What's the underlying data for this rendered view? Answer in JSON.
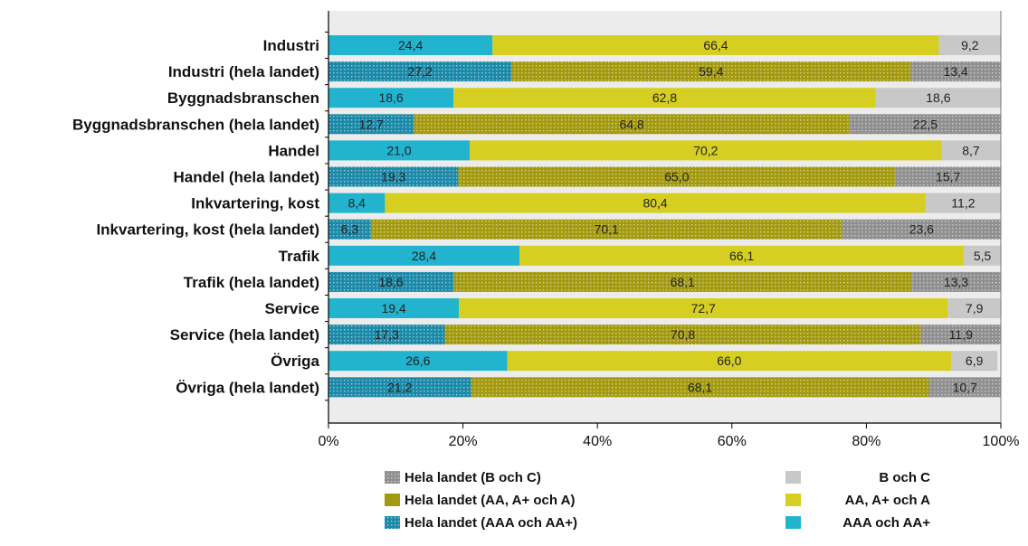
{
  "chart_data": {
    "type": "bar",
    "orientation": "horizontal",
    "stacked": true,
    "percent_scale": true,
    "categories": [
      "Industri",
      "Industri (hela landet)",
      "Byggnadsbranschen",
      "Byggnadsbranschen (hela landet)",
      "Handel",
      "Handel (hela landet)",
      "Inkvartering, kost",
      "Inkvartering, kost (hela landet)",
      "Trafik",
      "Trafik (hela landet)",
      "Service",
      "Service (hela landet)",
      "Övriga",
      "Övriga (hela landet)"
    ],
    "rows": [
      {
        "national": false,
        "values": [
          24.4,
          66.4,
          9.2
        ],
        "labels": [
          "24,4",
          "66,4",
          "9,2"
        ]
      },
      {
        "national": true,
        "values": [
          27.2,
          59.4,
          13.4
        ],
        "labels": [
          "27,2",
          "59,4",
          "13,4"
        ]
      },
      {
        "national": false,
        "values": [
          18.6,
          62.8,
          18.6
        ],
        "labels": [
          "18,6",
          "62,8",
          "18,6"
        ]
      },
      {
        "national": true,
        "values": [
          12.7,
          64.8,
          22.5
        ],
        "labels": [
          "12,7",
          "64,8",
          "22,5"
        ]
      },
      {
        "national": false,
        "values": [
          21.0,
          70.2,
          8.7
        ],
        "labels": [
          "21,0",
          "70,2",
          "8,7"
        ]
      },
      {
        "national": true,
        "values": [
          19.3,
          65.0,
          15.7
        ],
        "labels": [
          "19,3",
          "65,0",
          "15,7"
        ]
      },
      {
        "national": false,
        "values": [
          8.4,
          80.4,
          11.2
        ],
        "labels": [
          "8,4",
          "80,4",
          "11,2"
        ]
      },
      {
        "national": true,
        "values": [
          6.3,
          70.1,
          23.6
        ],
        "labels": [
          "6,3",
          "70,1",
          "23,6"
        ]
      },
      {
        "national": false,
        "values": [
          28.4,
          66.1,
          5.5
        ],
        "labels": [
          "28,4",
          "66,1",
          "5,5"
        ]
      },
      {
        "national": true,
        "values": [
          18.6,
          68.1,
          13.3
        ],
        "labels": [
          "18,6",
          "68,1",
          "13,3"
        ]
      },
      {
        "national": false,
        "values": [
          19.4,
          72.7,
          7.9
        ],
        "labels": [
          "19,4",
          "72,7",
          "7,9"
        ]
      },
      {
        "national": true,
        "values": [
          17.3,
          70.8,
          11.9
        ],
        "labels": [
          "17,3",
          "70,8",
          "11,9"
        ]
      },
      {
        "national": false,
        "values": [
          26.6,
          66.0,
          6.9
        ],
        "labels": [
          "26,6",
          "66,0",
          "6,9"
        ]
      },
      {
        "national": true,
        "values": [
          21.2,
          68.1,
          10.7
        ],
        "labels": [
          "21,2",
          "68,1",
          "10,7"
        ]
      }
    ],
    "segment_order": [
      "AAA och AA+",
      "AA, A+ och A",
      "B och C"
    ],
    "xlim": [
      0,
      100
    ],
    "xticks": [
      "0%",
      "20%",
      "40%",
      "60%",
      "80%",
      "100%"
    ],
    "grid": false,
    "legend_placement": "bottom",
    "legend": [
      {
        "label": "Hela landet (B och C)",
        "color": "#909090",
        "pattern": "dotted"
      },
      {
        "label": "B och C",
        "color": "#c8c8c8",
        "pattern": "solid"
      },
      {
        "label": "Hela landet (AA, A+ och A)",
        "color": "#a39a10",
        "pattern": "solid"
      },
      {
        "label": "AA, A+ och A",
        "color": "#d6cf22",
        "pattern": "solid"
      },
      {
        "label": "Hela landet (AAA och AA+)",
        "color": "#1c8aa8",
        "pattern": "dotted"
      },
      {
        "label": "AAA och AA+",
        "color": "#22b4cf",
        "pattern": "solid"
      }
    ],
    "colors": {
      "regional": [
        "#22b4cf",
        "#d6cf22",
        "#c8c8c8"
      ],
      "national": [
        "#1c8aa8",
        "#a39a10",
        "#909090"
      ],
      "plot_bg": "#ececec"
    }
  }
}
